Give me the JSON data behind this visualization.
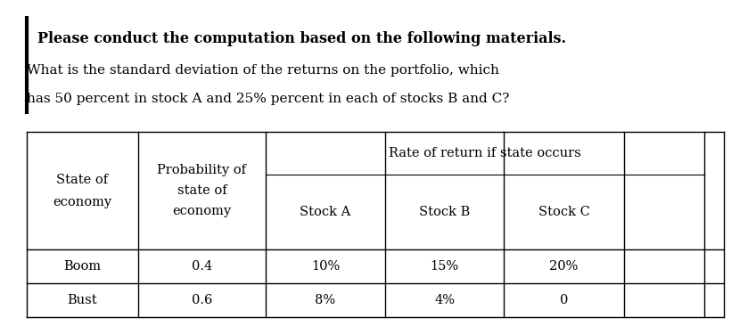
{
  "title_bold": "Please conduct the computation based on the following materials.",
  "question_line1": "What is the standard deviation of the returns on the portfolio, which",
  "question_line2": "has 50 percent in stock A and 25% percent in each of stocks B and C?",
  "table": {
    "span_header": "Rate of return if state occurs",
    "col0_header": [
      "State of",
      "economy"
    ],
    "col1_header": [
      "Probability of",
      "state of",
      "economy"
    ],
    "sub_headers": [
      "Stock A",
      "Stock B",
      "Stock C"
    ],
    "rows": [
      [
        "Boom",
        "0.4",
        "10%",
        "15%",
        "20%"
      ],
      [
        "Bust",
        "0.6",
        "8%",
        "4%",
        "0"
      ]
    ]
  },
  "bg_color": "#ffffff",
  "text_color": "#000000",
  "font_family": "DejaVu Serif",
  "title_fontsize": 11.5,
  "body_fontsize": 11.0,
  "table_fontsize": 10.5,
  "fig_width": 8.39,
  "fig_height": 3.66,
  "dpi": 100
}
